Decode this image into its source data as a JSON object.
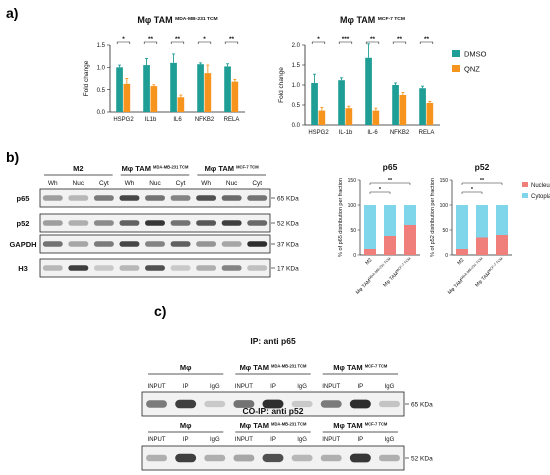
{
  "panels": {
    "a": "a)",
    "b": "b)",
    "c": "c)"
  },
  "colors": {
    "dmso": "#1f9e96",
    "qnz": "#f7941d",
    "nucleus": "#f07f7b",
    "cytoplasm": "#7fd6ea",
    "band": "#1a1a1a"
  },
  "chart_data": [
    {
      "type": "bar",
      "title": "Mφ TAM",
      "title_sup": "MDA-MB-231 TCM",
      "ylabel": "Fold change",
      "ylim": [
        0,
        1.5
      ],
      "yticks": [
        "0.0",
        "0.5",
        "1.0",
        "1.5"
      ],
      "categories": [
        "HSPG2",
        "IL1b",
        "IL6",
        "NFKB2",
        "RELA"
      ],
      "series": [
        {
          "name": "DMSO",
          "values": [
            1.0,
            1.05,
            1.1,
            1.07,
            1.02
          ],
          "errors": [
            0.05,
            0.15,
            0.2,
            0.03,
            0.06
          ]
        },
        {
          "name": "QNZ",
          "values": [
            0.63,
            0.58,
            0.33,
            0.87,
            0.68
          ],
          "errors": [
            0.12,
            0.03,
            0.05,
            0.18,
            0.05
          ]
        }
      ],
      "significance": [
        "*",
        "**",
        "**",
        "*",
        "**"
      ]
    },
    {
      "type": "bar",
      "title": "Mφ TAM",
      "title_sup": "MCF-7 TCM",
      "ylabel": "Fold change",
      "ylim": [
        0,
        2.0
      ],
      "yticks": [
        "0.0",
        "0.5",
        "1.0",
        "1.5",
        "2.0"
      ],
      "categories": [
        "HSPG2",
        "IL-1b",
        "IL-6",
        "NFKB2",
        "RELA"
      ],
      "series": [
        {
          "name": "DMSO",
          "values": [
            1.05,
            1.12,
            1.68,
            1.0,
            0.92
          ],
          "errors": [
            0.22,
            0.06,
            0.35,
            0.05,
            0.05
          ]
        },
        {
          "name": "QNZ",
          "values": [
            0.36,
            0.42,
            0.36,
            0.75,
            0.55
          ],
          "errors": [
            0.08,
            0.05,
            0.06,
            0.06,
            0.04
          ]
        }
      ],
      "significance": [
        "*",
        "***",
        "**",
        "**",
        "**"
      ],
      "legend": [
        "DMSO",
        "QNZ"
      ]
    },
    {
      "type": "bar",
      "stacked": true,
      "title": "p65",
      "ylabel": "% of p65 distribution per fraction",
      "ylim": [
        0,
        150
      ],
      "yticks": [
        "0",
        "50",
        "100",
        "150"
      ],
      "categories": [
        "M2",
        "Mφ TAM",
        "Mφ TAM"
      ],
      "category_sups": [
        "",
        "MDA-MB-231 TCM",
        "MCF-7 TCM"
      ],
      "series": [
        {
          "name": "Nucleus",
          "values": [
            12,
            38,
            60
          ]
        },
        {
          "name": "Cytoplasm",
          "values": [
            88,
            62,
            40
          ]
        }
      ],
      "significance": [
        "**",
        "*"
      ]
    },
    {
      "type": "bar",
      "stacked": true,
      "title": "p52",
      "ylabel": "% of p52 distribution per fraction",
      "ylim": [
        0,
        150
      ],
      "yticks": [
        "0",
        "50",
        "100",
        "150"
      ],
      "categories": [
        "M2",
        "Mφ TAM",
        "Mφ TAM"
      ],
      "category_sups": [
        "",
        "MDA-MB-231 TCM",
        "MCF-7 TCM"
      ],
      "series": [
        {
          "name": "Nucleus",
          "values": [
            12,
            35,
            40
          ]
        },
        {
          "name": "Cytoplasm",
          "values": [
            88,
            65,
            60
          ]
        }
      ],
      "significance": [
        "**",
        "*"
      ],
      "legend": [
        "Nucleus",
        "Cytoplasm"
      ]
    }
  ],
  "western_b": {
    "groups": [
      {
        "label": "M2",
        "sup": ""
      },
      {
        "label": "Mφ TAM",
        "sup": "MDA-MB-231 TCM"
      },
      {
        "label": "Mφ TAM",
        "sup": "MCF-7 TCM"
      }
    ],
    "lanes": [
      "Wh",
      "Nuc",
      "Cyt",
      "Wh",
      "Nuc",
      "Cyt",
      "Wh",
      "Nuc",
      "Cyt"
    ],
    "rows": [
      {
        "label": "p65",
        "kda": "65 KDa",
        "intensity": [
          0.3,
          0.15,
          0.5,
          0.8,
          0.55,
          0.45,
          0.75,
          0.6,
          0.55
        ]
      },
      {
        "label": "p52",
        "kda": "52 KDa",
        "intensity": [
          0.3,
          0.2,
          0.4,
          0.65,
          0.9,
          0.55,
          0.7,
          0.85,
          0.6
        ]
      },
      {
        "label": "GAPDH",
        "kda": "37 KDa",
        "intensity": [
          0.55,
          0.25,
          0.5,
          0.8,
          0.45,
          0.65,
          0.35,
          0.25,
          0.95
        ]
      },
      {
        "label": "H3",
        "kda": "17 KDa",
        "intensity": [
          0.15,
          0.85,
          0.05,
          0.15,
          0.75,
          0.05,
          0.2,
          0.45,
          0.1
        ]
      }
    ]
  },
  "western_c": {
    "blots": [
      {
        "title": "IP: anti p65",
        "kda": "65 KDa",
        "groups": [
          {
            "label": "Mφ",
            "sup": ""
          },
          {
            "label": "Mφ TAM",
            "sup": "MDA-MB-231 TCM"
          },
          {
            "label": "Mφ TAM",
            "sup": "MCF-7 TCM"
          }
        ],
        "lanes": [
          "INPUT",
          "IP",
          "IgG",
          "INPUT",
          "IP",
          "IgG",
          "INPUT",
          "IP",
          "IgG"
        ],
        "intensity": [
          0.5,
          0.85,
          0.05,
          0.55,
          0.95,
          0.05,
          0.5,
          0.95,
          0.08
        ]
      },
      {
        "title": "CO-IP: anti p52",
        "kda": "52 KDa",
        "groups": [
          {
            "label": "Mφ",
            "sup": ""
          },
          {
            "label": "Mφ TAM",
            "sup": "MDA-MB-231 TCM"
          },
          {
            "label": "Mφ TAM",
            "sup": "MCF-7 TCM"
          }
        ],
        "lanes": [
          "INPUT",
          "IP",
          "IgG",
          "INPUT",
          "IP",
          "IgG",
          "INPUT",
          "IP",
          "IgG"
        ],
        "intensity": [
          0.2,
          0.85,
          0.2,
          0.25,
          0.75,
          0.15,
          0.2,
          0.9,
          0.2
        ]
      }
    ]
  }
}
